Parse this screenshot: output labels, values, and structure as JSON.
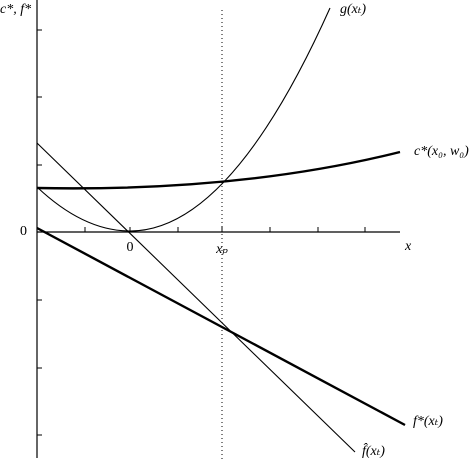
{
  "axes": {
    "y_label": "c*, f*",
    "x_label": "x",
    "y_zero": "0",
    "x_zero": "0",
    "x_p": "xₚ"
  },
  "curves": {
    "g": "g(xₜ)",
    "c_star": "c*(x₀, w₀)",
    "f_star": "f*(xₜ)",
    "f_hat": "f̂(xₜ)"
  }
}
